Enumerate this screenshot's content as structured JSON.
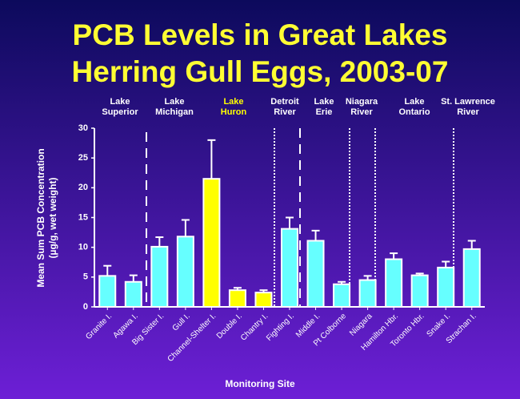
{
  "chart_data": {
    "type": "bar",
    "title": [
      "PCB Levels in Great Lakes",
      "Herring Gull Eggs, 2003-07"
    ],
    "groups": [
      [
        "Lake",
        "Superior"
      ],
      [
        "Lake",
        "Michigan"
      ],
      [
        "Lake",
        "Huron"
      ],
      [
        "Detroit",
        "River"
      ],
      [
        "Lake",
        "Erie"
      ],
      [
        "Niagara",
        "River"
      ],
      [
        "Lake",
        "Ontario"
      ],
      [
        "St. Lawrence",
        "River"
      ]
    ],
    "categories": [
      "Granite I.",
      "Agawa I.",
      "Big Sister I.",
      "Gull I.",
      "Channel-Shelter I.",
      "Double I.",
      "Chantry I.",
      "Fighting I.",
      "Middle I.",
      "Pt Colborne",
      "Niagara",
      "Hamilton Hbr.",
      "Toronto Hbr.",
      "Snake I.",
      "Strachan I."
    ],
    "values": [
      5.2,
      4.2,
      10.1,
      11.8,
      21.5,
      2.8,
      2.4,
      13.1,
      11.1,
      3.8,
      4.5,
      8.0,
      5.3,
      6.6,
      9.7
    ],
    "errors": [
      1.7,
      1.1,
      1.6,
      2.8,
      6.5,
      0.4,
      0.4,
      1.9,
      1.7,
      0.4,
      0.7,
      1.0,
      0.3,
      1.0,
      1.4
    ],
    "colors": [
      "#66ffff",
      "#66ffff",
      "#66ffff",
      "#66ffff",
      "#ffff00",
      "#ffff00",
      "#ffff00",
      "#66ffff",
      "#66ffff",
      "#66ffff",
      "#66ffff",
      "#66ffff",
      "#66ffff",
      "#66ffff",
      "#66ffff"
    ],
    "highlight_group_color": "#ffff00",
    "y_label": [
      "Mean Sum PCB Concentration",
      "(µg/g, wet weight)"
    ],
    "x_label": "Monitoring Site",
    "ylim": [
      0,
      30
    ],
    "yticks": [
      0,
      5,
      10,
      15,
      20,
      25,
      30
    ]
  }
}
